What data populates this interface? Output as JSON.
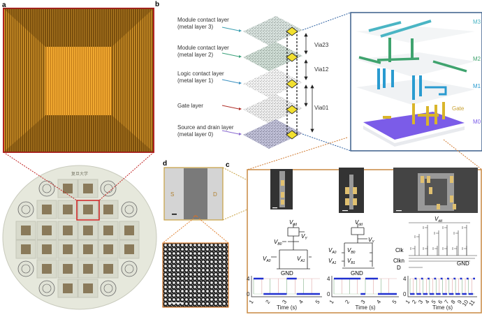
{
  "panels": {
    "a": "a",
    "b": "b",
    "c": "c",
    "d": "d"
  },
  "wafer_text": "复旦大学",
  "panel_b": {
    "layers": [
      {
        "line1": "Module contact layer",
        "line2": "(metal layer 3)",
        "color": "#3a9fb0"
      },
      {
        "line1": "Module contact layer",
        "line2": "(metal layer 2)",
        "color": "#3aa07a"
      },
      {
        "line1": "Logic contact layer",
        "line2": "(metal layer 1)",
        "color": "#3a90c0"
      },
      {
        "line1": "Gate layer",
        "line2": "",
        "color": "#b0302a"
      },
      {
        "line1": "Source and drain layer",
        "line2": "(metal layer 0)",
        "color": "#8a6ad0"
      }
    ],
    "vias": [
      "Via23",
      "Via12",
      "Via01"
    ],
    "stack_labels": {
      "m3": "M3",
      "m2": "M2",
      "m1": "M1",
      "gate": "Gate",
      "m0": "M0"
    },
    "colors": {
      "m3": "#4ab5c4",
      "m2": "#3fa36e",
      "m1": "#2a9bd0",
      "gate": "#d9b52a",
      "m0": "#7b5ce8"
    }
  },
  "panel_d": {
    "source": "S",
    "drain": "D"
  },
  "panel_c": {
    "circuit1": {
      "vdd": "V",
      "vdd_sub": "dd",
      "vy": "V",
      "vy_sub": "Y",
      "vb0": "V",
      "vb0_sub": "B0",
      "va0": "V",
      "va0_sub": "A0",
      "va1": "V",
      "va1_sub": "A1",
      "gnd": "GND"
    },
    "circuit2": {
      "vdd": "V",
      "vdd_sub": "dd",
      "vy": "V",
      "vy_sub": "Y",
      "va0": "V",
      "va0_sub": "A0",
      "vb0": "V",
      "vb0_sub": "B0",
      "va1": "V",
      "va1_sub": "A1",
      "vb1": "V",
      "vb1_sub": "B1",
      "gnd": "GND"
    },
    "circuit3": {
      "vdd": "V",
      "vdd_sub": "dd",
      "clk": "Clk",
      "clkn": "Clkn",
      "d": "D",
      "gnd": "GND"
    }
  },
  "chart_data": [
    {
      "type": "line",
      "xlabel": "Time (s)",
      "ylabel": "",
      "xlim": [
        1,
        5
      ],
      "ylim": [
        0,
        4
      ],
      "xticks": [
        "1",
        "2",
        "3",
        "4",
        "5"
      ],
      "yticks": [
        "0",
        "4"
      ],
      "x": [
        1,
        1.6,
        1.6,
        3,
        3,
        3.6,
        3.6,
        5
      ],
      "y": [
        4,
        4,
        0,
        0,
        4,
        4,
        0,
        0
      ]
    },
    {
      "type": "line",
      "xlabel": "Time (s)",
      "ylabel": "",
      "xlim": [
        1,
        5
      ],
      "ylim": [
        0,
        4
      ],
      "xticks": [
        "1",
        "2",
        "3",
        "4",
        "5"
      ],
      "yticks": [
        "0",
        "4"
      ],
      "x": [
        1,
        2.7,
        2.7,
        3,
        3,
        3.8,
        3.8,
        5
      ],
      "y": [
        4,
        4,
        0,
        0,
        4,
        4,
        0,
        0
      ]
    },
    {
      "type": "line",
      "xlabel": "Time (s)",
      "ylabel": "",
      "xlim": [
        1,
        11
      ],
      "ylim": [
        0,
        4
      ],
      "xticks": [
        "1",
        "2",
        "3",
        "4",
        "5",
        "6",
        "7",
        "8",
        "9",
        "10",
        "11"
      ],
      "yticks": [
        "0",
        "4"
      ],
      "x": [
        1,
        1.7,
        1.7,
        2,
        2,
        2.7,
        2.7,
        3,
        3,
        3.7,
        3.7,
        4,
        4,
        4.7,
        4.7,
        5,
        5,
        5.7,
        5.7,
        6,
        6,
        6.7,
        6.7,
        7,
        7,
        7.7,
        7.7,
        8,
        8,
        8.7,
        8.7,
        9,
        9,
        9.7,
        9.7,
        10,
        10,
        10.7,
        10.7,
        11
      ],
      "y": [
        0,
        0,
        4,
        4,
        0,
        0,
        4,
        4,
        0,
        0,
        4,
        4,
        0,
        0,
        4,
        4,
        0,
        0,
        4,
        4,
        0,
        0,
        4,
        4,
        0,
        0,
        4,
        4,
        0,
        0,
        4,
        4,
        0,
        0,
        4,
        4,
        0,
        0,
        4,
        4
      ]
    }
  ]
}
